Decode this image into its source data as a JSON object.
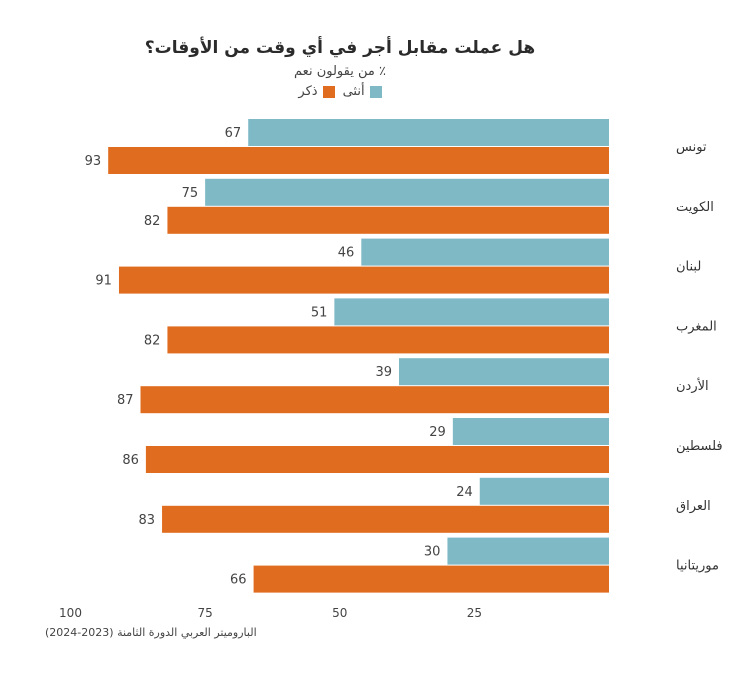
{
  "title": "هل عملت مقابل أجر في أي وقت من الأوقات؟",
  "subtitle": "٪ من يقولون نعم",
  "source": "الباروميتر العربي الدورة الثامنة (2023-2024)",
  "colors": {
    "female": "#7fb9c6",
    "male": "#e06c1f",
    "text": "#444444"
  },
  "chart_data": {
    "type": "bar",
    "orientation": "horizontal",
    "direction": "right-to-left",
    "title": "هل عملت مقابل أجر في أي وقت من الأوقات؟",
    "subtitle": "٪ من يقولون نعم",
    "categories": [
      "تونس",
      "الكويت",
      "لبنان",
      "المغرب",
      "الأردن",
      "فلسطين",
      "العراق",
      "موريتانيا"
    ],
    "series": [
      {
        "name": "أنثى",
        "color": "#7fb9c6",
        "values": [
          67,
          75,
          46,
          51,
          39,
          29,
          24,
          30
        ]
      },
      {
        "name": "ذكر",
        "color": "#e06c1f",
        "values": [
          93,
          82,
          91,
          82,
          87,
          86,
          83,
          66
        ]
      }
    ],
    "xticks": [
      100,
      75,
      50,
      25
    ],
    "xlim": [
      0,
      100
    ],
    "legend": "top-center",
    "grid": false
  }
}
